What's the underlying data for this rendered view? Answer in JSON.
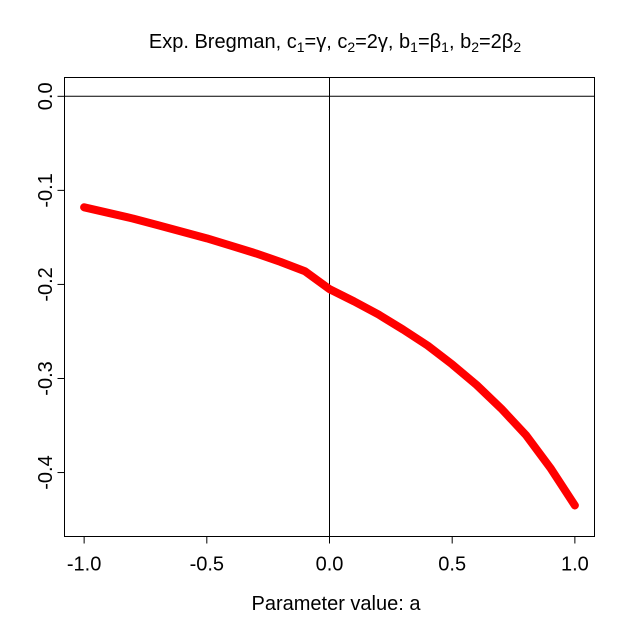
{
  "chart_data": {
    "type": "line",
    "title": {
      "segments": [
        {
          "text": "Exp. Bregman, c"
        },
        {
          "text": "1",
          "sub": true
        },
        {
          "text": "=γ, c"
        },
        {
          "text": "2",
          "sub": true
        },
        {
          "text": "=2γ, b"
        },
        {
          "text": "1",
          "sub": true
        },
        {
          "text": "=β"
        },
        {
          "text": "1",
          "sub": true
        },
        {
          "text": ", b"
        },
        {
          "text": "2",
          "sub": true
        },
        {
          "text": "=2β"
        },
        {
          "text": "2",
          "sub": true
        }
      ]
    },
    "xlabel": "Parameter value: a",
    "ylabel": "",
    "xlim": [
      -1.08,
      1.08
    ],
    "ylim": [
      -0.468,
      0.02
    ],
    "xticks": [
      -1.0,
      -0.5,
      0.0,
      0.5,
      1.0
    ],
    "xtick_labels": [
      "-1.0",
      "-0.5",
      "0.0",
      "0.5",
      "1.0"
    ],
    "yticks": [
      0.0,
      -0.1,
      -0.2,
      -0.3,
      -0.4
    ],
    "ytick_labels": [
      "0.0",
      "-0.1",
      "-0.2",
      "-0.3",
      "-0.4"
    ],
    "reference_lines": [
      {
        "orientation": "horizontal",
        "value": 0.0,
        "color": "#000000"
      },
      {
        "orientation": "vertical",
        "value": 0.0,
        "color": "#000000"
      }
    ],
    "grid": false,
    "series": [
      {
        "color": "#ff0000",
        "x": [
          -1.0,
          -0.9,
          -0.8,
          -0.7,
          -0.6,
          -0.5,
          -0.4,
          -0.3,
          -0.2,
          -0.1,
          0.0,
          0.1,
          0.2,
          0.3,
          0.4,
          0.5,
          0.6,
          0.7,
          0.8,
          0.9,
          1.0
        ],
        "y": [
          -0.118,
          -0.124,
          -0.13,
          -0.137,
          -0.144,
          -0.151,
          -0.159,
          -0.167,
          -0.176,
          -0.186,
          -0.205,
          -0.218,
          -0.232,
          -0.248,
          -0.265,
          -0.285,
          -0.307,
          -0.332,
          -0.36,
          -0.395,
          -0.435
        ]
      }
    ]
  }
}
